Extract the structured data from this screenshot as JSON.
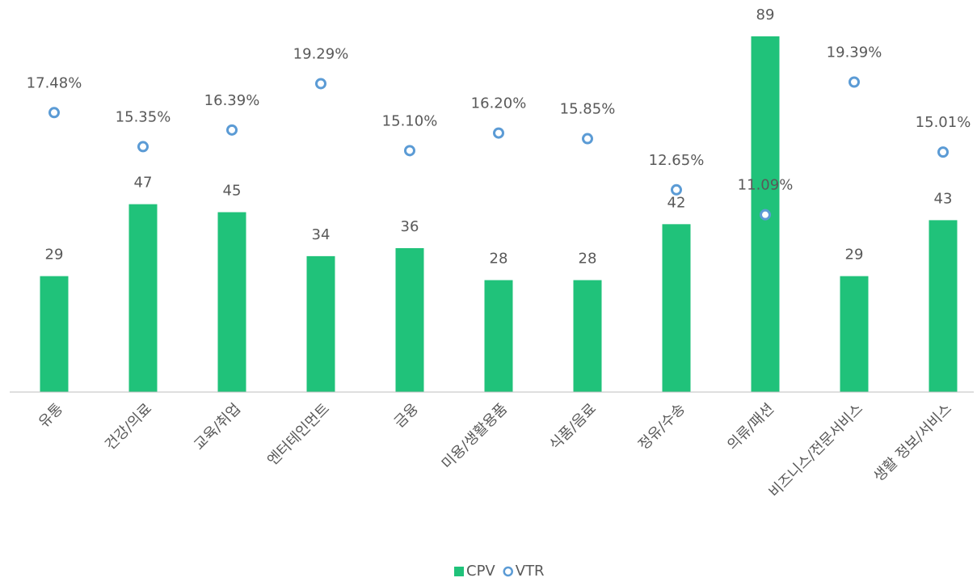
{
  "chart_data": {
    "type": "bar_line",
    "categories": [
      "유통",
      "건강/의료",
      "교육/취업",
      "엔터테인먼트",
      "금융",
      "미용/생활용품",
      "식품/음료",
      "정유/수송",
      "의류/패션",
      "비즈니스/전문서비스",
      "생활 정보/서비스"
    ],
    "series": [
      {
        "name": "CPV",
        "type": "bar",
        "color": "#20c27a",
        "values": [
          29,
          47,
          45,
          34,
          36,
          28,
          28,
          42,
          89,
          29,
          43
        ]
      },
      {
        "name": "VTR",
        "type": "marker",
        "axis": "y2",
        "color": "#5b9bd5",
        "values": [
          17.48,
          15.35,
          16.39,
          19.29,
          15.1,
          16.2,
          15.85,
          12.65,
          11.09,
          19.39,
          15.01
        ],
        "value_labels": [
          "17.48%",
          "15.35%",
          "16.39%",
          "19.29%",
          "15.10%",
          "16.20%",
          "15.85%",
          "12.65%",
          "11.09%",
          "19.39%",
          "15.01%"
        ]
      }
    ],
    "ylim": [
      0,
      90
    ],
    "y2lim": [
      0,
      22.5
    ],
    "legend": "bottom"
  }
}
